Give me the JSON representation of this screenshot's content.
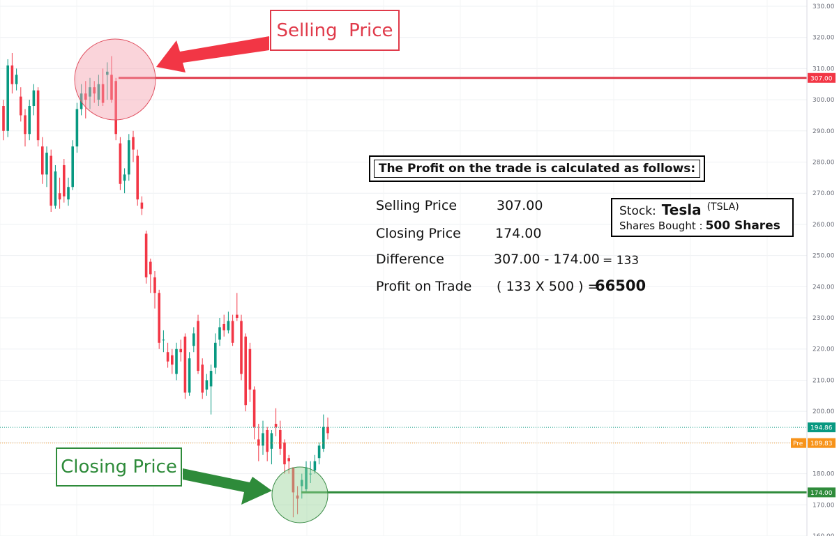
{
  "chart_data": {
    "type": "candlestick",
    "ylim": [
      160,
      332
    ],
    "y_ticks": [
      160,
      170,
      180,
      190,
      200,
      210,
      220,
      230,
      240,
      250,
      260,
      270,
      280,
      290,
      300,
      310,
      320,
      330
    ],
    "y_tick_labels": [
      "160.00",
      "170.00",
      "180.00",
      "190.00",
      "200.00",
      "210.00",
      "220.00",
      "230.00",
      "240.00",
      "250.00",
      "260.00",
      "270.00",
      "280.00",
      "290.00",
      "300.00",
      "310.00",
      "320.00",
      "330.00"
    ],
    "grid": true,
    "candles": [
      [
        298,
        290,
        300,
        287
      ],
      [
        290,
        311,
        313,
        288
      ],
      [
        311,
        305,
        315,
        302
      ],
      [
        305,
        308,
        310,
        303
      ],
      [
        301,
        295,
        304,
        293
      ],
      [
        295,
        289,
        297,
        285
      ],
      [
        289,
        298,
        300,
        287
      ],
      [
        298,
        303,
        305,
        295
      ],
      [
        303,
        287,
        304,
        285
      ],
      [
        285,
        276,
        288,
        273
      ],
      [
        276,
        283,
        285,
        272
      ],
      [
        282,
        266,
        284,
        264
      ],
      [
        266,
        277,
        279,
        265
      ],
      [
        270,
        268,
        275,
        265
      ],
      [
        279,
        269,
        281,
        267
      ],
      [
        268,
        272,
        275,
        266
      ],
      [
        272,
        285,
        287,
        271
      ],
      [
        285,
        297,
        299,
        283
      ],
      [
        297,
        302,
        305,
        295
      ],
      [
        302,
        300,
        306,
        294
      ],
      [
        301,
        304,
        307,
        297
      ],
      [
        304,
        302,
        306,
        299
      ],
      [
        300,
        305,
        308,
        298
      ],
      [
        305,
        299,
        310,
        298
      ],
      [
        308,
        309,
        312,
        300
      ],
      [
        308,
        300,
        314,
        299
      ],
      [
        306,
        289,
        307,
        287
      ],
      [
        286,
        273,
        288,
        271
      ],
      [
        274,
        276,
        278,
        270
      ],
      [
        276,
        287,
        289,
        274
      ],
      [
        288,
        284,
        290,
        280
      ],
      [
        282,
        268,
        284,
        266
      ],
      [
        267,
        265,
        269,
        263
      ],
      [
        257,
        243,
        258,
        241
      ],
      [
        248,
        244,
        249,
        238
      ],
      [
        243,
        238,
        245,
        233
      ],
      [
        238,
        222,
        239,
        220
      ],
      [
        223,
        223,
        226,
        219
      ],
      [
        219,
        216,
        222,
        214
      ],
      [
        218,
        215,
        220,
        212
      ],
      [
        212,
        220,
        222,
        210
      ],
      [
        220,
        219,
        223,
        216
      ],
      [
        224,
        206,
        225,
        204
      ],
      [
        206,
        217,
        219,
        205
      ],
      [
        221,
        225,
        227,
        219
      ],
      [
        229,
        213,
        231,
        212
      ],
      [
        215,
        206,
        217,
        204
      ],
      [
        207,
        210,
        212,
        205
      ],
      [
        208,
        213,
        215,
        199
      ],
      [
        214,
        222,
        225,
        212
      ],
      [
        223,
        227,
        230,
        221
      ],
      [
        228,
        226,
        231,
        224
      ],
      [
        226,
        229,
        232,
        225
      ],
      [
        229,
        222,
        231,
        221
      ],
      [
        231,
        230,
        238,
        229
      ],
      [
        229,
        212,
        231,
        210
      ],
      [
        224,
        202,
        225,
        200
      ],
      [
        220,
        207,
        222,
        203
      ],
      [
        207,
        195,
        208,
        191
      ],
      [
        191,
        189,
        196,
        184
      ],
      [
        189,
        193,
        197,
        186
      ],
      [
        194,
        187,
        195,
        184
      ],
      [
        188,
        193,
        194,
        183
      ],
      [
        196,
        195,
        201,
        192
      ],
      [
        194,
        188,
        197,
        186
      ],
      [
        190,
        183,
        191,
        180
      ],
      [
        185,
        184,
        186,
        180
      ],
      [
        182,
        174,
        182,
        166
      ],
      [
        173,
        172,
        176,
        167
      ],
      [
        176,
        178,
        180,
        172
      ],
      [
        175,
        182,
        184,
        174
      ],
      [
        180,
        180,
        184,
        177
      ],
      [
        181,
        184,
        186,
        180
      ],
      [
        185,
        189,
        190,
        183
      ],
      [
        188,
        195,
        199,
        187
      ],
      [
        195,
        193,
        198,
        191
      ]
    ],
    "selling_line": 307.0,
    "closing_line": 174.0,
    "price_labels": [
      {
        "value": 307.0,
        "text": "307.00",
        "color": "#f23645"
      },
      {
        "value": 194.86,
        "text": "194.86",
        "color": "#089981"
      },
      {
        "value": 174.0,
        "text": "174.00",
        "color": "#2e8b3a"
      }
    ],
    "pre_label": {
      "value": 189.83,
      "text": "189.83",
      "tag": "Pre",
      "color": "#f7931a"
    },
    "colors": {
      "up": "#089981",
      "down": "#f23645",
      "sell": "#e03a4a",
      "close": "#2e8b3a"
    }
  },
  "annotations": {
    "selling_label": "Selling  Price",
    "closing_label": "Closing Price"
  },
  "calc": {
    "title": "The Profit on the trade is calculated as follows:",
    "row1_label": "Selling   Price",
    "row1_value": "307.00",
    "row2_label": "Closing Price",
    "row2_value": "174.00",
    "row3_label": "Difference",
    "row3_value": "307.00 - 174.00",
    "row3_result": "= 133",
    "row4_label": "Profit on Trade",
    "row4_value": "( 133 X 500 ) =",
    "row4_result": "66500"
  },
  "stock": {
    "label": "Stock:",
    "ticker": "Tesla",
    "symbol": "(TSLA)",
    "shares_label": "Shares Bought :",
    "shares_value": "500 Shares"
  }
}
